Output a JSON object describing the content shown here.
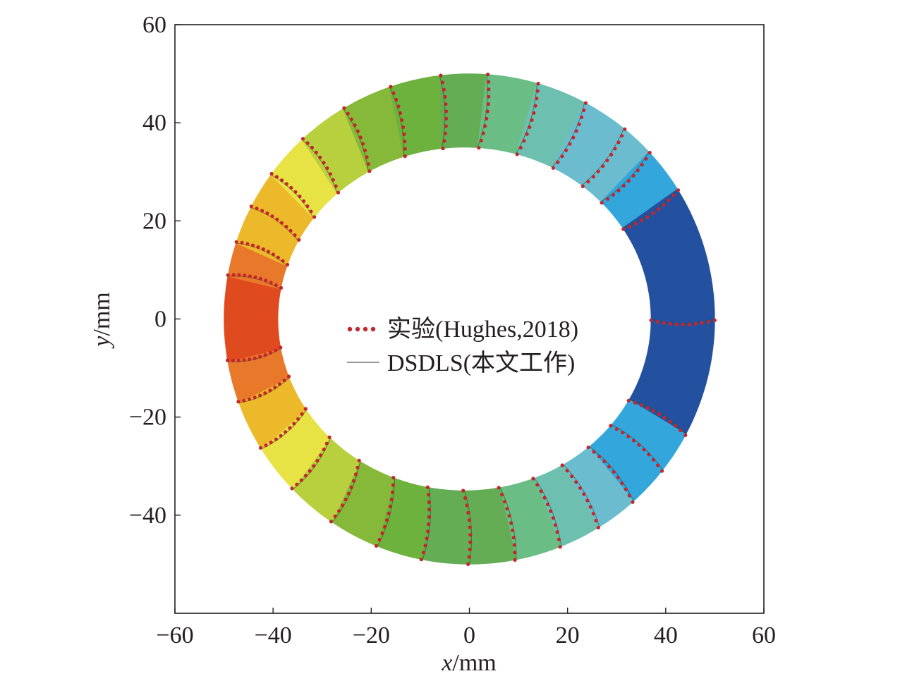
{
  "chart_data": {
    "type": "scatter",
    "xlabel": {
      "var": "x",
      "unit": "/mm"
    },
    "ylabel": {
      "var": "y",
      "unit": "/mm"
    },
    "xlim": [
      -60,
      60
    ],
    "ylim": [
      -60,
      60
    ],
    "xticks": [
      -60,
      -40,
      -20,
      0,
      20,
      40,
      60
    ],
    "yticks": [
      -40,
      -20,
      0,
      20,
      40,
      60
    ],
    "xtick_labels": [
      "−60",
      "−40",
      "−20",
      "0",
      "20",
      "40",
      "60"
    ],
    "ytick_labels": [
      "−40",
      "−20",
      "0",
      "20",
      "40",
      "60"
    ],
    "grid": false,
    "legend_position": "center",
    "ring": {
      "center": [
        0,
        0
      ],
      "outer_radius": 50,
      "inner_rx": 38,
      "inner_ry": 35,
      "inner_center": [
        -1,
        0
      ]
    },
    "colormap": [
      "#e04a1f",
      "#e8792a",
      "#ecb92a",
      "#e8e345",
      "#b8cf3e",
      "#86b93a",
      "#6cb23c",
      "#64ad55",
      "#6abd85",
      "#6dbfb0",
      "#6bbccf",
      "#33a6dc",
      "#2f6cb2",
      "#24519f",
      "#1c4592"
    ],
    "contour_bands_angles_deg": [
      180,
      170,
      162,
      153,
      144,
      133,
      121,
      109,
      97,
      86,
      74,
      62,
      51,
      43,
      32,
      0,
      -28,
      -38,
      -48,
      -58,
      -68,
      -79,
      -90,
      -101,
      -112,
      -124,
      -136,
      -148,
      -160,
      -170,
      -180
    ],
    "series": [
      {
        "name": "实验(Hughes,2018)",
        "style": "dotted-red",
        "color": "#c4262e"
      },
      {
        "name": "DSDLS(本文工作)",
        "style": "solid-gray",
        "color": "#9a9a9a"
      }
    ]
  }
}
